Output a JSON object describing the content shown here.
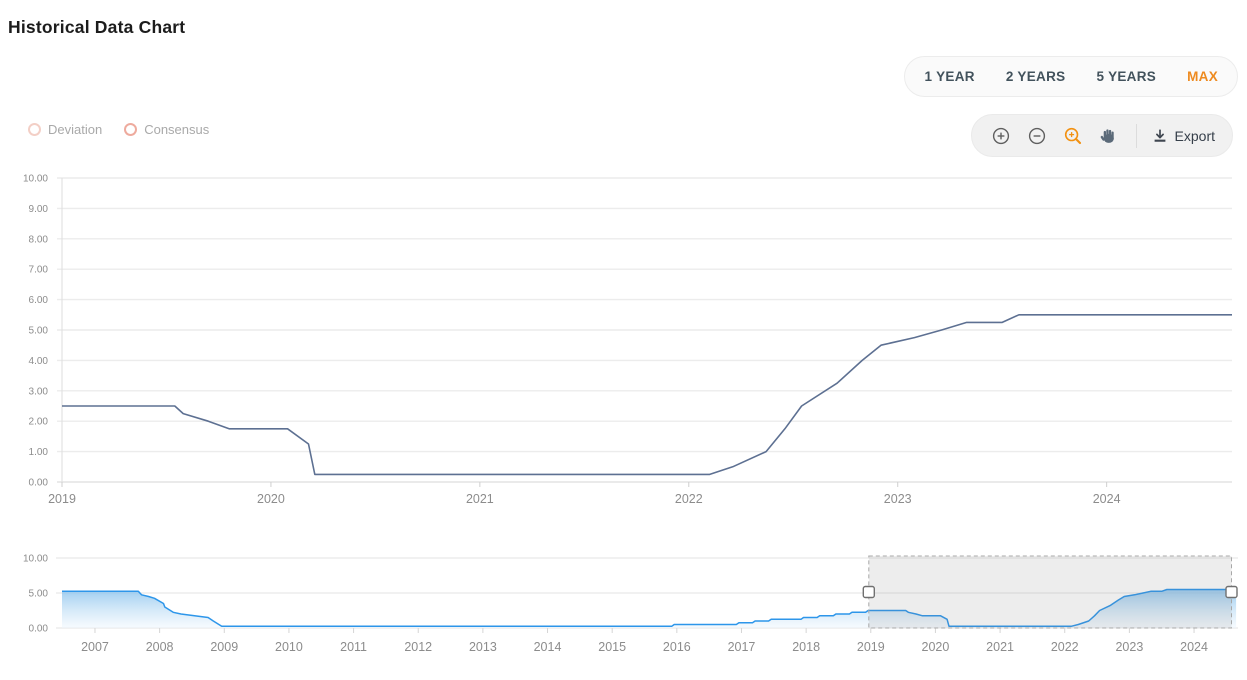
{
  "header": {
    "title": "Historical Data Chart"
  },
  "range_selector": {
    "options": [
      {
        "label": "1 YEAR",
        "active": false
      },
      {
        "label": "2 YEARS",
        "active": false
      },
      {
        "label": "5 YEARS",
        "active": false
      },
      {
        "label": "MAX",
        "active": true
      }
    ]
  },
  "legend": {
    "items": [
      {
        "label": "Deviation",
        "color": "#f3cfc6"
      },
      {
        "label": "Consensus",
        "color": "#eeab9e"
      }
    ]
  },
  "toolbar": {
    "icons": [
      "zoom-in",
      "zoom-out",
      "zoom-selection",
      "pan"
    ],
    "active_icon": "zoom-selection",
    "export_label": "Export"
  },
  "colors": {
    "accent": "#ee8a1f",
    "main_line": "#5d7092",
    "nav_line": "#2d96ea",
    "grid": "#ececec",
    "axis": "#dedede",
    "tick_text": "#8c8c8c"
  },
  "chart_data": [
    {
      "type": "line",
      "name": "main-history",
      "title": "Historical Data Chart",
      "xlabel": "",
      "ylabel": "",
      "xlim": [
        2019.0,
        2024.6
      ],
      "ylim": [
        0,
        10
      ],
      "grid": "horizontal",
      "x_ticks": [
        "2019",
        "2020",
        "2021",
        "2022",
        "2023",
        "2024"
      ],
      "y_ticks": [
        "0.00",
        "1.00",
        "2.00",
        "3.00",
        "4.00",
        "5.00",
        "6.00",
        "7.00",
        "8.00",
        "9.00",
        "10.00"
      ],
      "line_color": "#5d7092",
      "series": [
        {
          "name": "rate",
          "x": [
            2019.0,
            2019.54,
            2019.58,
            2019.7,
            2019.8,
            2020.08,
            2020.18,
            2020.21,
            2022.1,
            2022.21,
            2022.37,
            2022.46,
            2022.54,
            2022.71,
            2022.83,
            2022.92,
            2023.08,
            2023.21,
            2023.33,
            2023.5,
            2023.58,
            2024.6
          ],
          "y": [
            2.5,
            2.5,
            2.25,
            2.0,
            1.75,
            1.75,
            1.25,
            0.25,
            0.25,
            0.5,
            1.0,
            1.75,
            2.5,
            3.25,
            4.0,
            4.5,
            4.75,
            5.0,
            5.25,
            5.25,
            5.5,
            5.5
          ]
        }
      ]
    },
    {
      "type": "area",
      "name": "navigator",
      "xlim": [
        2006.49,
        2024.68
      ],
      "ylim": [
        0,
        10
      ],
      "grid": "horizontal",
      "x_ticks": [
        "2007",
        "2008",
        "2009",
        "2010",
        "2011",
        "2012",
        "2013",
        "2014",
        "2015",
        "2016",
        "2017",
        "2018",
        "2019",
        "2020",
        "2021",
        "2022",
        "2023",
        "2024"
      ],
      "y_ticks": [
        "0.00",
        "5.00",
        "10.00"
      ],
      "line_color": "#2d96ea",
      "selection": {
        "start": 2018.97,
        "end": 2024.58
      },
      "series": [
        {
          "name": "rate-full",
          "x": [
            2006.49,
            2007.67,
            2007.72,
            2007.83,
            2007.92,
            2008.06,
            2008.08,
            2008.21,
            2008.33,
            2008.75,
            2008.83,
            2008.96,
            2015.92,
            2015.96,
            2016.92,
            2016.96,
            2017.17,
            2017.21,
            2017.42,
            2017.46,
            2017.92,
            2017.96,
            2018.17,
            2018.21,
            2018.42,
            2018.46,
            2018.67,
            2018.71,
            2018.92,
            2018.96,
            2019.54,
            2019.58,
            2019.7,
            2019.8,
            2020.08,
            2020.18,
            2020.21,
            2022.1,
            2022.21,
            2022.37,
            2022.46,
            2022.54,
            2022.71,
            2022.83,
            2022.92,
            2023.08,
            2023.21,
            2023.33,
            2023.5,
            2023.58,
            2024.65
          ],
          "y": [
            5.25,
            5.25,
            4.75,
            4.5,
            4.25,
            3.5,
            3.0,
            2.25,
            2.0,
            1.5,
            1.0,
            0.25,
            0.25,
            0.5,
            0.5,
            0.75,
            0.75,
            1.0,
            1.0,
            1.25,
            1.25,
            1.5,
            1.5,
            1.75,
            1.75,
            2.0,
            2.0,
            2.25,
            2.25,
            2.5,
            2.5,
            2.25,
            2.0,
            1.75,
            1.75,
            1.25,
            0.25,
            0.25,
            0.5,
            1.0,
            1.75,
            2.5,
            3.25,
            4.0,
            4.5,
            4.75,
            5.0,
            5.25,
            5.25,
            5.5,
            5.5
          ]
        }
      ]
    }
  ]
}
